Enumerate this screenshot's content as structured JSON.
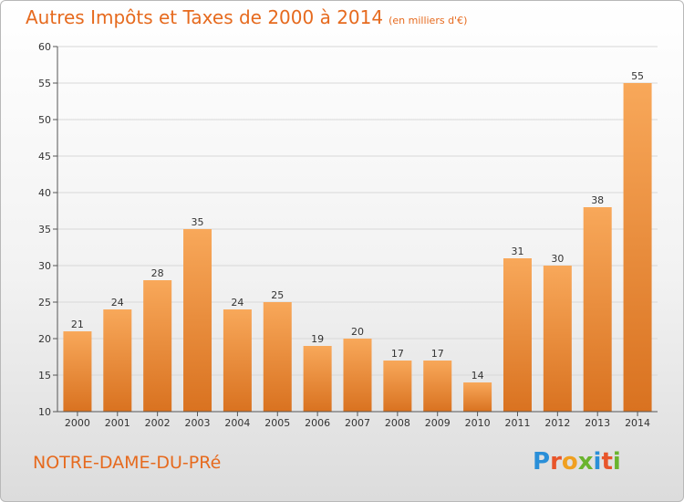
{
  "header": {
    "title": "Autres Impôts et Taxes de 2000 à 2014",
    "subtitle": "(en milliers d'€)"
  },
  "footer": {
    "commune": "NOTRE-DAME-DU-PRé",
    "logo_text": "Proxiti"
  },
  "colors": {
    "accent": "#e66a1e",
    "bar_top": "#f8a85a",
    "bar_bottom": "#d97220",
    "grid": "#d8d8d8",
    "axis": "#555555"
  },
  "chart_data": {
    "type": "bar",
    "title": "Autres Impôts et Taxes de 2000 à 2014",
    "subtitle": "(en milliers d'€)",
    "categories": [
      "2000",
      "2001",
      "2002",
      "2003",
      "2004",
      "2005",
      "2006",
      "2007",
      "2008",
      "2009",
      "2010",
      "2011",
      "2012",
      "2013",
      "2014"
    ],
    "values": [
      21,
      24,
      28,
      35,
      24,
      25,
      19,
      20,
      17,
      17,
      14,
      31,
      30,
      38,
      55
    ],
    "ylim": [
      10,
      60
    ],
    "yticks": [
      10,
      15,
      20,
      25,
      30,
      35,
      40,
      45,
      50,
      55,
      60
    ],
    "grid": true,
    "xlabel": "",
    "ylabel": ""
  }
}
